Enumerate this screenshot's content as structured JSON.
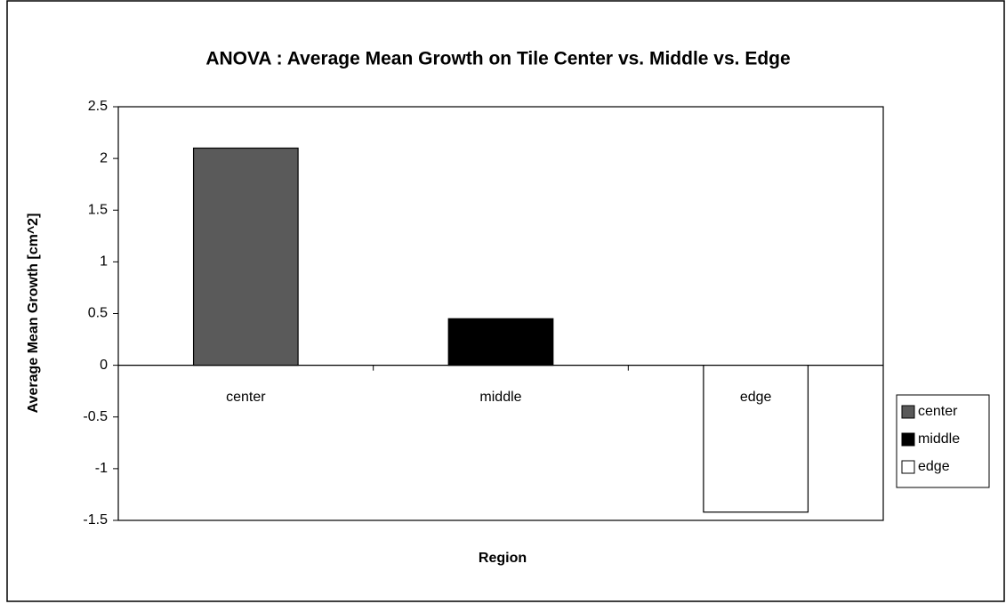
{
  "chart_data": {
    "type": "bar",
    "title": "ANOVA :  Average Mean Growth on Tile Center vs. Middle vs. Edge",
    "x_label": "Region",
    "y_label": "Average Mean Growth [cm^2]",
    "categories": [
      "center",
      "middle",
      "edge"
    ],
    "series": [
      {
        "name": "center",
        "color": "#5a5a5a",
        "values": [
          2.1,
          null,
          null
        ]
      },
      {
        "name": "middle",
        "color": "#000000",
        "values": [
          null,
          0.45,
          null
        ]
      },
      {
        "name": "edge",
        "color": "#ffffff",
        "values": [
          null,
          null,
          -1.42
        ]
      }
    ],
    "ylim": [
      -1.5,
      2.5
    ],
    "yticks": [
      2.5,
      2,
      1.5,
      1,
      0.5,
      0,
      -0.5,
      -1,
      -1.5
    ],
    "grid": false,
    "legend": "right"
  }
}
